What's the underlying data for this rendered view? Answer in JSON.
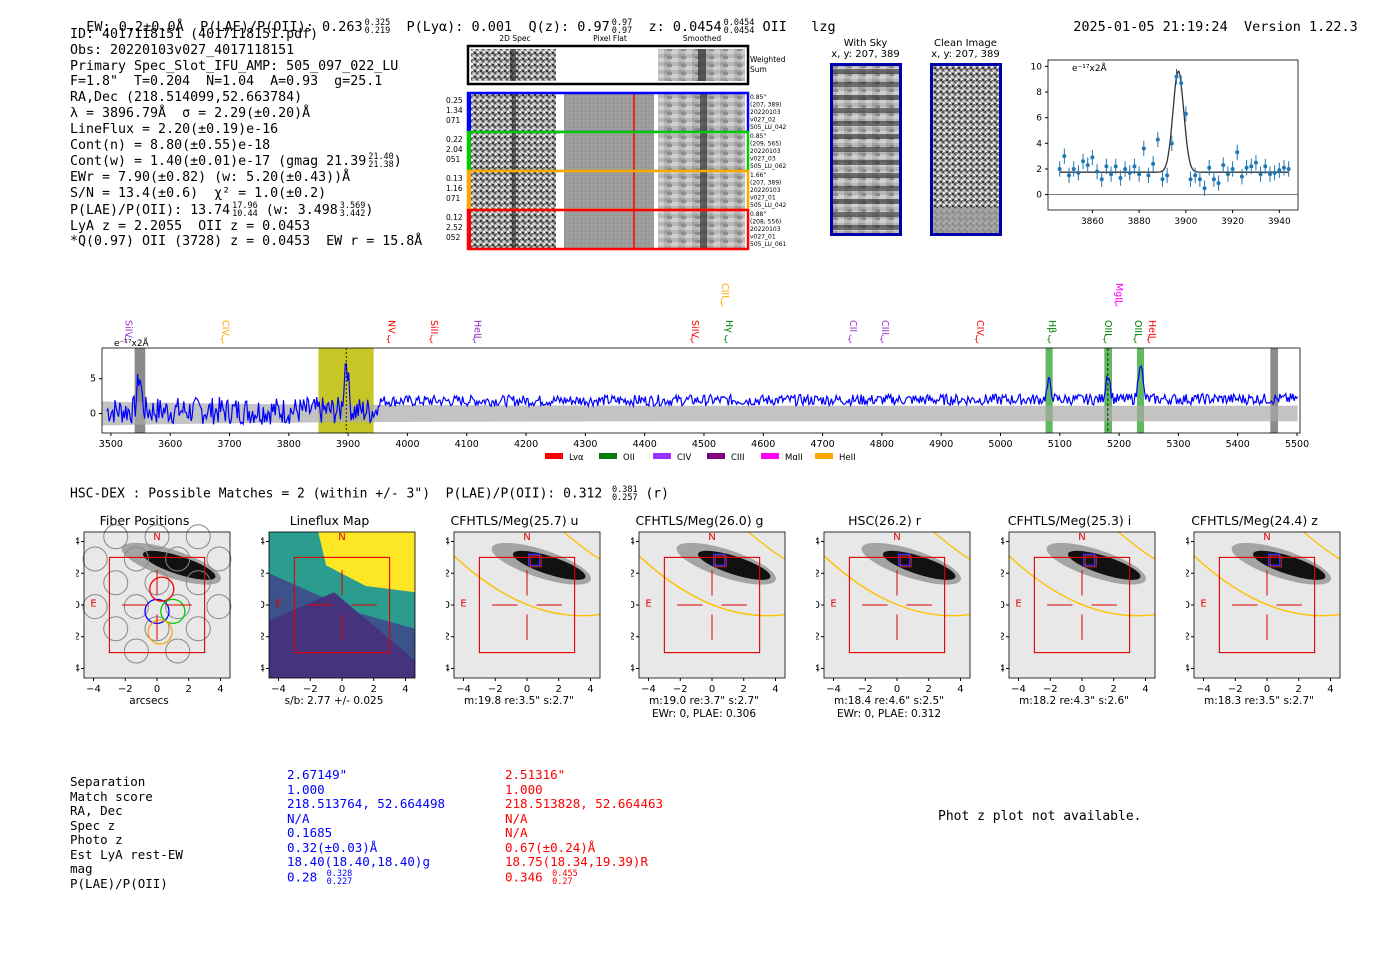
{
  "header": {
    "ew": "EW: 0.2±0.0Å",
    "plae_label": "P(LAE)/P(OII): 0.263",
    "plae_hi": "0.325",
    "plae_lo": "0.219",
    "plya": "P(Lyα): 0.001",
    "qz": "Q(z): 0.97",
    "qz_hi": "0.97",
    "qz_lo": "0.97",
    "z": "z: 0.0454",
    "z_hi": "0.0454",
    "z_lo": "0.0454",
    "line": "OII",
    "flag": "lzg",
    "datetime": "2025-01-05 21:19:24",
    "version": "Version 1.22.3"
  },
  "info": {
    "id": "ID: 4017118151 (4017118151.pdf)",
    "obs": "Obs: 20220103v027_4017118151",
    "primary": "Primary Spec_Slot_IFU_AMP: 505_097_022_LU",
    "fwhm": "F=1.8\"  T=0.204  N=1.04  A=0.93  g=25.1",
    "radec": "RA,Dec (218.514099,52.663784)",
    "lambda": "λ = 3896.79Å  σ = 2.29(±0.20)Å",
    "lineflux": "LineFlux = 2.20(±0.19)e-16",
    "contn": "Cont(n) = 8.80(±0.55)e-18",
    "contw": "Cont(w) = 1.40(±0.01)e-17 (gmag 21.39",
    "contw_hi": "21.40",
    "contw_lo": "21.38",
    "ewr": "EWr = 7.90(±0.82) (w: 5.20(±0.43))Å",
    "sn": "S/N = 13.4(±0.6)  χ² = 1.0(±0.2)",
    "plae": "P(LAE)/P(OII): 13.74",
    "plae_hi": "17.96",
    "plae_lo": "10.44",
    "plae_w": "(w: 3.498",
    "plae_w_hi": "3.569",
    "plae_w_lo": "3.442",
    "lya_z": "LyA z = 2.2055  OII z = 0.0453",
    "q_oii": "*Q(0.97) OII (3728) z = 0.0453  EW r = 15.8Å"
  },
  "spec2d": {
    "col_titles": [
      "2D Spec",
      "Pixel Flat",
      "Smoothed"
    ],
    "weighted": [
      "Weighted",
      "Sum"
    ],
    "rows": [
      {
        "left": [
          "0.25",
          "1.34",
          "071"
        ],
        "right": [
          "0.85\"",
          "(207, 389)",
          "20220103",
          "v027_02",
          "505_LU_042"
        ],
        "color": "#0000ff"
      },
      {
        "left": [
          "0.22",
          "2.04",
          "051"
        ],
        "right": [
          "0.85\"",
          "(209, 565)",
          "20220103",
          "v027_03",
          "505_LU_062"
        ],
        "color": "#00cc00"
      },
      {
        "left": [
          "0.13",
          "1.16",
          "071"
        ],
        "right": [
          "1.66\"",
          "(207, 389)",
          "20220103",
          "v027_01",
          "505_LU_042"
        ],
        "color": "#ffa500"
      },
      {
        "left": [
          "0.12",
          "2.52",
          "052"
        ],
        "right": [
          "0.88\"",
          "(208, 556)",
          "20220103",
          "v027_01",
          "505_LU_061"
        ],
        "color": "#ff0000"
      }
    ]
  },
  "sky": {
    "with_sky": "With Sky",
    "with_sky_xy": "x, y: 207, 389",
    "clean": "Clean Image",
    "clean_xy": "x, y: 207, 389"
  },
  "fit_chart": {
    "type": "scatter",
    "ylabel": "e⁻¹⁷x2Å",
    "xlim": [
      3841,
      3948
    ],
    "ylim": [
      -1.2,
      10.5
    ],
    "xticks": [
      3860,
      3880,
      3900,
      3920,
      3940
    ],
    "yticks": [
      0,
      2,
      4,
      6,
      8,
      10
    ],
    "x": [
      3846,
      3848,
      3850,
      3852,
      3854,
      3856,
      3858,
      3860,
      3862,
      3864,
      3866,
      3868,
      3870,
      3872,
      3874,
      3876,
      3878,
      3880,
      3882,
      3884,
      3886,
      3888,
      3890,
      3892,
      3894,
      3896,
      3898,
      3900,
      3902,
      3904,
      3906,
      3908,
      3910,
      3912,
      3914,
      3916,
      3918,
      3920,
      3922,
      3924,
      3926,
      3928,
      3930,
      3932,
      3934,
      3936,
      3938,
      3940,
      3942,
      3944
    ],
    "y": [
      2.0,
      3.0,
      1.5,
      2.0,
      1.7,
      2.6,
      2.3,
      2.9,
      1.8,
      1.2,
      2.2,
      1.6,
      2.2,
      1.3,
      2.0,
      1.7,
      2.2,
      1.6,
      3.6,
      1.5,
      2.4,
      4.3,
      1.2,
      1.5,
      4.0,
      9.2,
      8.7,
      6.3,
      1.2,
      1.5,
      1.2,
      0.5,
      2.1,
      1.2,
      0.9,
      2.3,
      1.6,
      2.0,
      3.3,
      1.4,
      2.1,
      2.2,
      2.5,
      1.6,
      2.2,
      1.6,
      1.7,
      1.9,
      2.1,
      2.0
    ],
    "fit": {
      "continuum": 1.75,
      "amplitude": 7.9,
      "center": 3896.8,
      "sigma": 2.29
    }
  },
  "spectrum": {
    "type": "line",
    "ylabel": "e⁻¹⁷x2Å",
    "xlim": [
      3485,
      5505
    ],
    "ylim": [
      -2.8,
      9.4
    ],
    "xticks": [
      3500,
      3600,
      3700,
      3800,
      3900,
      4000,
      4100,
      4200,
      4300,
      4400,
      4500,
      4600,
      4700,
      4800,
      4900,
      5000,
      5100,
      5200,
      5300,
      5400,
      5500
    ],
    "yticks": [
      0,
      5
    ],
    "line_x": 3896.8,
    "highlight_band": [
      3850,
      3943
    ],
    "gray_bands": [
      [
        3540,
        3558
      ],
      [
        5455,
        5468
      ]
    ],
    "green_bands": [
      [
        5076,
        5088
      ],
      [
        5175,
        5188
      ],
      [
        5230,
        5242
      ]
    ],
    "peaks": [
      {
        "x": 3896.8,
        "h": 7.5
      },
      {
        "x": 5181,
        "h": 3.8
      },
      {
        "x": 5236,
        "h": 5.5
      },
      {
        "x": 5082,
        "h": 2.5
      },
      {
        "x": 3548,
        "h": 5.0
      }
    ],
    "line_labels": [
      {
        "text": "SiIV",
        "x": 3525,
        "color": "#9933cc",
        "row": 1
      },
      {
        "text": "CIV",
        "x": 3688,
        "color": "#ffa500",
        "row": 1
      },
      {
        "text": "NV",
        "x": 3968,
        "color": "#ff0000",
        "row": 1
      },
      {
        "text": "SiII",
        "x": 4040,
        "color": "#ff0000",
        "row": 1
      },
      {
        "text": "HeII",
        "x": 4113,
        "color": "#9933cc",
        "row": 1
      },
      {
        "text": "SiIV",
        "x": 4480,
        "color": "#ff0000",
        "row": 1
      },
      {
        "text": "CIII",
        "x": 4530,
        "color": "#ffa500",
        "row": 0
      },
      {
        "text": "Hγ",
        "x": 4537,
        "color": "#008000",
        "row": 1
      },
      {
        "text": "CII",
        "x": 4746,
        "color": "#9933cc",
        "row": 1
      },
      {
        "text": "CIII",
        "x": 4800,
        "color": "#9933cc",
        "row": 1
      },
      {
        "text": "CIV",
        "x": 4960,
        "color": "#ff0000",
        "row": 1
      },
      {
        "text": "Hβ",
        "x": 5082,
        "color": "#008000",
        "row": 1
      },
      {
        "text": "MgII",
        "x": 5195,
        "color": "#ff00ff",
        "row": 0
      },
      {
        "text": "OIII",
        "x": 5176,
        "color": "#008000",
        "row": 1
      },
      {
        "text": "OIII",
        "x": 5227,
        "color": "#008000",
        "row": 1
      },
      {
        "text": "HeII",
        "x": 5250,
        "color": "#ff0000",
        "row": 1
      }
    ],
    "legend": [
      {
        "label": "Lyα",
        "color": "#ff0000"
      },
      {
        "label": "OII",
        "color": "#008000"
      },
      {
        "label": "CIV",
        "color": "#9933ff"
      },
      {
        "label": "CIII",
        "color": "#800080"
      },
      {
        "label": "MgII",
        "color": "#ff00ff"
      },
      {
        "label": "HeII",
        "color": "#ffa500"
      }
    ]
  },
  "hsc": {
    "title": "HSC-DEX : Possible Matches = 2 (within +/- 3\")  P(LAE)/P(OII): 0.312",
    "hi": "0.381",
    "lo": "0.257",
    "band": "(r)"
  },
  "cutouts": {
    "xticks": [
      "−4",
      "−2",
      "0",
      "2",
      "4"
    ],
    "yticks": [
      "4",
      "2",
      "0",
      "−2",
      "−4"
    ],
    "panels": [
      {
        "title": "Fiber Positions",
        "caption1": "arcsecs",
        "caption2": "",
        "kind": "fiber"
      },
      {
        "title": "Lineflux Map",
        "caption1": "s/b: 2.77 +/- 0.025",
        "caption2": "",
        "kind": "lineflux"
      },
      {
        "title": "CFHTLS/Meg(25.7) u",
        "caption1": "m:19.8  re:3.5\"  s:2.7\"",
        "caption2": "",
        "kind": "img"
      },
      {
        "title": "CFHTLS/Meg(26.0) g",
        "caption1": "m:19.0  re:3.7\"  s:2.7\"",
        "caption2": "EWr: 0, PLAE: 0.306",
        "kind": "img"
      },
      {
        "title": "HSC(26.2) r",
        "caption1": "m:18.4  re:4.6\"  s:2.5\"",
        "caption2": "EWr: 0, PLAE: 0.312",
        "kind": "img"
      },
      {
        "title": "CFHTLS/Meg(25.3) i",
        "caption1": "m:18.2  re:4.3\"  s:2.6\"",
        "caption2": "",
        "kind": "img"
      },
      {
        "title": "CFHTLS/Meg(24.4) z",
        "caption1": "m:18.3  re:3.5\"  s:2.7\"",
        "caption2": "",
        "kind": "img"
      }
    ],
    "n_label": "N",
    "e_label": "E"
  },
  "matches": {
    "labels": [
      "Separation",
      "Match score",
      "RA, Dec",
      "Spec z",
      "Photo z",
      "Est LyA rest-EW",
      "mag",
      "P(LAE)/P(OII)"
    ],
    "blue": [
      "2.67149\"",
      "1.000",
      "218.513764, 52.664498",
      "N/A",
      "0.1685",
      "0.32(±0.03)Å",
      "18.40(18.40,18.40)g",
      "0.28"
    ],
    "blue_hi": "0.328",
    "blue_lo": "0.227",
    "red": [
      "2.51316\"",
      "1.000",
      "218.513828, 52.664463",
      "N/A",
      "N/A",
      "0.67(±0.24)Å",
      "18.75(18.34,19.39)R",
      "0.346"
    ],
    "red_hi": "0.455",
    "red_lo": "0.27",
    "photz_msg": "Phot z plot not available."
  }
}
